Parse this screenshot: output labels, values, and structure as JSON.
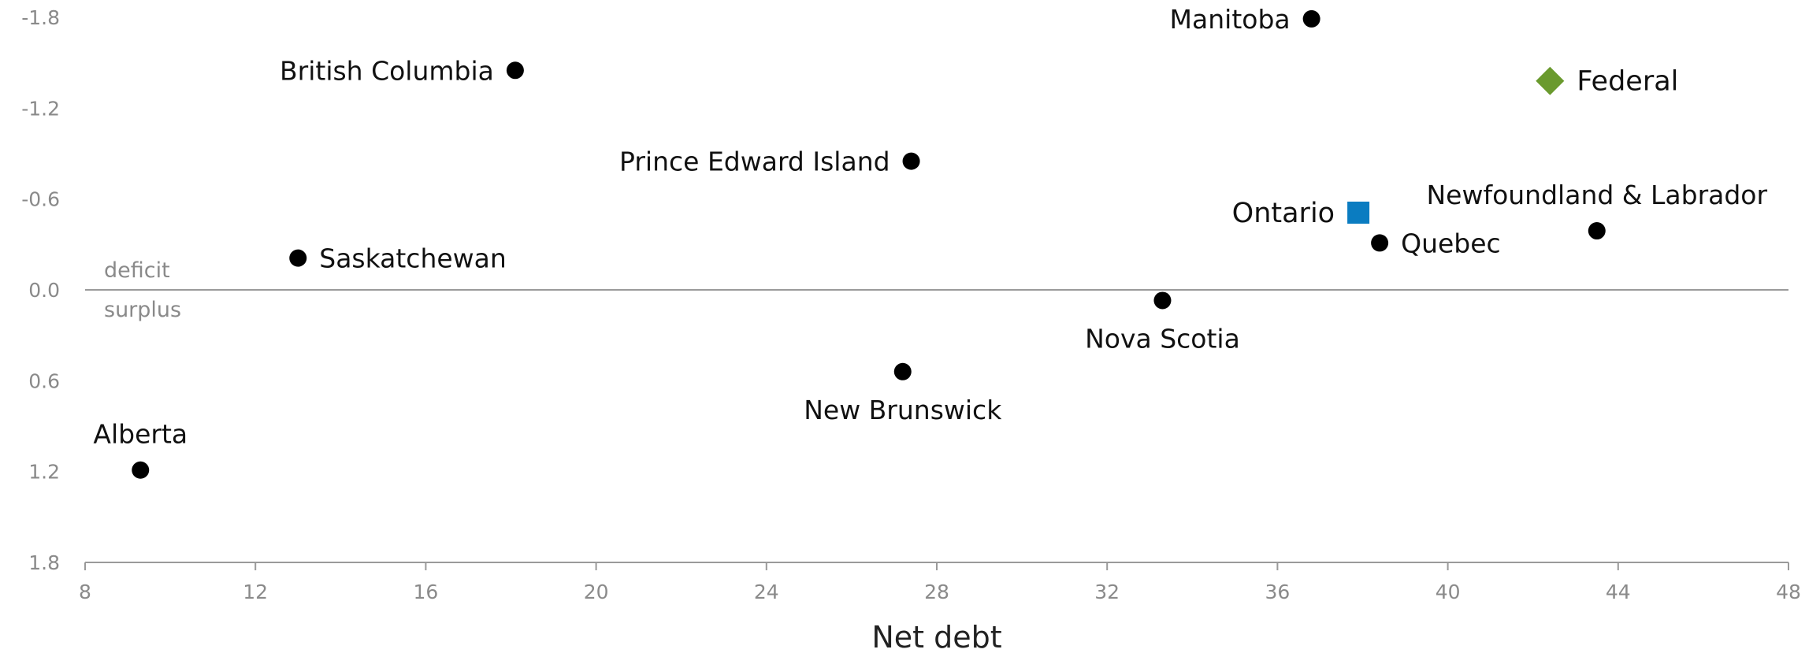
{
  "chart_data": {
    "type": "scatter",
    "xlabel": "Net debt",
    "ylabel": "",
    "xlim": [
      8,
      48
    ],
    "ylim": [
      -1.8,
      1.8
    ],
    "y_inverted": true,
    "x_ticks": [
      8,
      12,
      16,
      20,
      24,
      28,
      32,
      36,
      40,
      44,
      48
    ],
    "y_ticks": [
      -1.8,
      -1.2,
      -0.6,
      0.0,
      0.6,
      1.2,
      1.8
    ],
    "x_tick_labels": [
      "8",
      "12",
      "16",
      "20",
      "24",
      "28",
      "32",
      "36",
      "40",
      "44",
      "48"
    ],
    "y_tick_labels": [
      "-1.8",
      "-1.2",
      "-0.6",
      "0.0",
      "0.6",
      "1.2",
      "1.8"
    ],
    "zone_labels": {
      "above": "deficit",
      "below": "surplus"
    },
    "grid": false,
    "colors": {
      "province": "#000000",
      "ontario": "#0a7cc1",
      "federal": "#6a9a2e"
    },
    "points": [
      {
        "label": "Manitoba",
        "x": 36.8,
        "y": -1.79,
        "marker": "circle",
        "label_pos": "left"
      },
      {
        "label": "British Columbia",
        "x": 18.1,
        "y": -1.45,
        "marker": "circle",
        "label_pos": "left"
      },
      {
        "label": "Federal",
        "x": 42.4,
        "y": -1.38,
        "marker": "diamond",
        "label_pos": "right"
      },
      {
        "label": "Prince Edward Island",
        "x": 27.4,
        "y": -0.85,
        "marker": "circle",
        "label_pos": "left"
      },
      {
        "label": "Ontario",
        "x": 37.9,
        "y": -0.51,
        "marker": "square",
        "label_pos": "left"
      },
      {
        "label": "Newfoundland & Labrador",
        "x": 43.5,
        "y": -0.39,
        "marker": "circle",
        "label_pos": "above"
      },
      {
        "label": "Quebec",
        "x": 38.4,
        "y": -0.31,
        "marker": "circle",
        "label_pos": "right"
      },
      {
        "label": "Saskatchewan",
        "x": 13.0,
        "y": -0.21,
        "marker": "circle",
        "label_pos": "right"
      },
      {
        "label": "Nova Scotia",
        "x": 33.3,
        "y": 0.07,
        "marker": "circle",
        "label_pos": "below"
      },
      {
        "label": "New Brunswick",
        "x": 27.2,
        "y": 0.54,
        "marker": "circle",
        "label_pos": "below"
      },
      {
        "label": "Alberta",
        "x": 9.3,
        "y": 1.19,
        "marker": "circle",
        "label_pos": "above"
      }
    ]
  }
}
